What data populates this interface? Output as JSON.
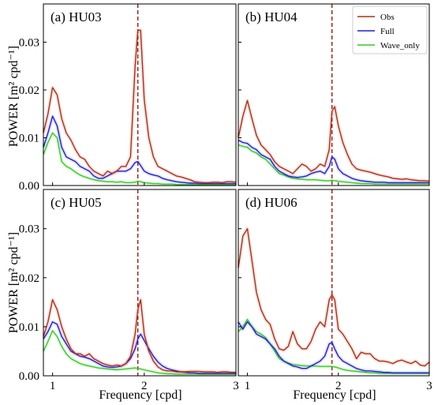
{
  "chart_data": {
    "type": "line",
    "ylabel": "POWER [m² cpd⁻¹]",
    "xlabel": "Frequency [cpd]",
    "xlim": [
      0.9,
      3.0
    ],
    "ylim": [
      0,
      0.038
    ],
    "xticks": [
      {
        "value": 1,
        "label": "1"
      },
      {
        "value": 2,
        "label": "2"
      },
      {
        "value": 3,
        "label": "3"
      }
    ],
    "yticks": [
      {
        "value": 0.0,
        "label": "0.00"
      },
      {
        "value": 0.01,
        "label": "0.01"
      },
      {
        "value": 0.02,
        "label": "0.02"
      },
      {
        "value": 0.03,
        "label": "0.03"
      }
    ],
    "reference_line_x": 1.93,
    "legend": {
      "placement": "top-right",
      "entries": [
        {
          "name": "Obs",
          "color": "#b22d12"
        },
        {
          "name": "Full",
          "color": "#1f1fd6"
        },
        {
          "name": "Wave_only",
          "color": "#33cc22"
        }
      ]
    },
    "x": [
      0.9,
      0.95,
      1.0,
      1.05,
      1.1,
      1.15,
      1.2,
      1.25,
      1.3,
      1.35,
      1.4,
      1.45,
      1.5,
      1.55,
      1.6,
      1.65,
      1.7,
      1.75,
      1.8,
      1.85,
      1.9,
      1.93,
      1.96,
      2.0,
      2.05,
      2.1,
      2.15,
      2.2,
      2.25,
      2.3,
      2.35,
      2.4,
      2.45,
      2.5,
      2.55,
      2.6,
      2.65,
      2.7,
      2.75,
      2.8,
      2.85,
      2.9,
      2.95,
      3.0
    ],
    "panels": [
      {
        "label": "(a) HU03",
        "series": [
          {
            "name": "Obs",
            "values": [
              0.011,
              0.015,
              0.0205,
              0.019,
              0.014,
              0.011,
              0.0095,
              0.0075,
              0.006,
              0.0055,
              0.004,
              0.003,
              0.0025,
              0.002,
              0.003,
              0.0025,
              0.003,
              0.004,
              0.004,
              0.006,
              0.025,
              0.0325,
              0.0325,
              0.018,
              0.01,
              0.006,
              0.004,
              0.0035,
              0.003,
              0.0025,
              0.002,
              0.0018,
              0.0015,
              0.0012,
              0.0008,
              0.0007,
              0.0006,
              0.0006,
              0.0007,
              0.0007,
              0.0006,
              0.0008,
              0.0008,
              0.0007
            ]
          },
          {
            "name": "Full",
            "values": [
              0.008,
              0.011,
              0.0145,
              0.0125,
              0.008,
              0.006,
              0.0055,
              0.005,
              0.004,
              0.0035,
              0.003,
              0.002,
              0.0015,
              0.0015,
              0.002,
              0.0025,
              0.003,
              0.003,
              0.003,
              0.0035,
              0.0048,
              0.005,
              0.0042,
              0.003,
              0.0025,
              0.0022,
              0.002,
              0.0015,
              0.0012,
              0.001,
              0.0008,
              0.0007,
              0.0006,
              0.0005,
              0.0005,
              0.0004,
              0.0004,
              0.0004,
              0.0004,
              0.0004,
              0.0004,
              0.0004,
              0.0004,
              0.0004
            ]
          },
          {
            "name": "Wave_only",
            "values": [
              0.0065,
              0.009,
              0.011,
              0.01,
              0.005,
              0.004,
              0.0035,
              0.0028,
              0.0022,
              0.0018,
              0.0015,
              0.0012,
              0.001,
              0.0009,
              0.0008,
              0.0008,
              0.0007,
              0.0008,
              0.0006,
              0.0006,
              0.0007,
              0.0009,
              0.0008,
              0.0006,
              0.0005,
              0.0004,
              0.0004,
              0.0003,
              0.0003,
              0.0003,
              0.0002,
              0.0002,
              0.0002,
              0.0002,
              0.0002,
              0.0002,
              0.0002,
              0.0002,
              0.0002,
              0.0002,
              0.0002,
              0.0002,
              0.0002,
              0.0002
            ]
          }
        ]
      },
      {
        "label": "(b) HU04",
        "series": [
          {
            "name": "Obs",
            "values": [
              0.01,
              0.0145,
              0.0178,
              0.014,
              0.0105,
              0.0085,
              0.0075,
              0.0065,
              0.005,
              0.004,
              0.0035,
              0.003,
              0.0025,
              0.0035,
              0.0045,
              0.004,
              0.003,
              0.0035,
              0.0045,
              0.004,
              0.0075,
              0.0155,
              0.0165,
              0.0125,
              0.009,
              0.0065,
              0.0045,
              0.0035,
              0.0032,
              0.003,
              0.0028,
              0.0025,
              0.0022,
              0.002,
              0.0018,
              0.0015,
              0.0014,
              0.0013,
              0.0014,
              0.0012,
              0.0011,
              0.001,
              0.001,
              0.0009
            ]
          },
          {
            "name": "Full",
            "values": [
              0.0095,
              0.009,
              0.0088,
              0.008,
              0.0075,
              0.0065,
              0.006,
              0.0055,
              0.004,
              0.003,
              0.0025,
              0.002,
              0.0018,
              0.0017,
              0.0018,
              0.002,
              0.0025,
              0.0028,
              0.003,
              0.0025,
              0.004,
              0.006,
              0.0055,
              0.0035,
              0.0025,
              0.002,
              0.0015,
              0.0012,
              0.001,
              0.0009,
              0.0008,
              0.0007,
              0.0007,
              0.0007,
              0.0006,
              0.0006,
              0.0006,
              0.0006,
              0.0006,
              0.0006,
              0.0006,
              0.0006,
              0.0006,
              0.0006
            ]
          },
          {
            "name": "Wave_only",
            "values": [
              0.0085,
              0.0082,
              0.008,
              0.0072,
              0.0068,
              0.006,
              0.0055,
              0.0045,
              0.0035,
              0.0025,
              0.0022,
              0.0018,
              0.0015,
              0.0014,
              0.0013,
              0.0012,
              0.0012,
              0.0012,
              0.0011,
              0.001,
              0.001,
              0.0011,
              0.001,
              0.0009,
              0.0008,
              0.0007,
              0.0006,
              0.0005,
              0.0004,
              0.0004,
              0.0004,
              0.0003,
              0.0003,
              0.0003,
              0.0003,
              0.0003,
              0.0003,
              0.0003,
              0.0003,
              0.0003,
              0.0003,
              0.0003,
              0.0003,
              0.0003
            ]
          }
        ]
      },
      {
        "label": "(c) HU05",
        "series": [
          {
            "name": "Obs",
            "values": [
              0.008,
              0.011,
              0.0155,
              0.0135,
              0.01,
              0.0075,
              0.0055,
              0.0045,
              0.0045,
              0.004,
              0.0045,
              0.0035,
              0.003,
              0.0025,
              0.0022,
              0.002,
              0.0022,
              0.002,
              0.0025,
              0.004,
              0.0085,
              0.0135,
              0.0155,
              0.0085,
              0.005,
              0.003,
              0.0018,
              0.0012,
              0.001,
              0.001,
              0.0008,
              0.0008,
              0.0008,
              0.0009,
              0.0009,
              0.0009,
              0.0008,
              0.0008,
              0.0008,
              0.0007,
              0.0008,
              0.0008,
              0.0007,
              0.0007
            ]
          },
          {
            "name": "Full",
            "values": [
              0.0075,
              0.009,
              0.011,
              0.0105,
              0.008,
              0.0065,
              0.005,
              0.0045,
              0.004,
              0.0038,
              0.0035,
              0.003,
              0.0025,
              0.002,
              0.0018,
              0.0017,
              0.0018,
              0.002,
              0.0025,
              0.0035,
              0.0055,
              0.0075,
              0.0085,
              0.0072,
              0.0055,
              0.004,
              0.0028,
              0.002,
              0.0015,
              0.0012,
              0.001,
              0.0008,
              0.0007,
              0.0006,
              0.0006,
              0.0005,
              0.0005,
              0.0005,
              0.0005,
              0.0005,
              0.0005,
              0.0005,
              0.0005,
              0.0005
            ]
          },
          {
            "name": "Wave_only",
            "values": [
              0.005,
              0.007,
              0.0092,
              0.008,
              0.006,
              0.0045,
              0.0035,
              0.003,
              0.0025,
              0.0022,
              0.002,
              0.0018,
              0.0016,
              0.0015,
              0.0014,
              0.0013,
              0.0012,
              0.0013,
              0.0014,
              0.0015,
              0.0016,
              0.0015,
              0.0014,
              0.0012,
              0.001,
              0.0008,
              0.0006,
              0.0005,
              0.0004,
              0.0004,
              0.0003,
              0.0003,
              0.0003,
              0.0003,
              0.0003,
              0.0003,
              0.0003,
              0.0003,
              0.0003,
              0.0003,
              0.0003,
              0.0003,
              0.0003,
              0.0003
            ]
          }
        ]
      },
      {
        "label": "(d) HU06",
        "series": [
          {
            "name": "Obs",
            "values": [
              0.022,
              0.0285,
              0.03,
              0.0235,
              0.017,
              0.0135,
              0.0115,
              0.0105,
              0.0075,
              0.0055,
              0.0052,
              0.006,
              0.009,
              0.0065,
              0.0055,
              0.0055,
              0.007,
              0.0095,
              0.011,
              0.01,
              0.0155,
              0.0165,
              0.0155,
              0.0095,
              0.0085,
              0.007,
              0.0055,
              0.0035,
              0.0048,
              0.0045,
              0.0045,
              0.0035,
              0.003,
              0.003,
              0.0028,
              0.0025,
              0.003,
              0.0032,
              0.0028,
              0.0025,
              0.003,
              0.0022,
              0.002,
              0.0028
            ]
          },
          {
            "name": "Full",
            "values": [
              0.011,
              0.0095,
              0.011,
              0.01,
              0.0085,
              0.008,
              0.0075,
              0.0065,
              0.0055,
              0.004,
              0.003,
              0.0025,
              0.002,
              0.0018,
              0.0015,
              0.0015,
              0.002,
              0.0025,
              0.003,
              0.004,
              0.0065,
              0.0068,
              0.0055,
              0.004,
              0.003,
              0.0025,
              0.002,
              0.0015,
              0.0012,
              0.001,
              0.001,
              0.0009,
              0.0008,
              0.0007,
              0.0007,
              0.0006,
              0.0006,
              0.0006,
              0.0006,
              0.0006,
              0.0006,
              0.0006,
              0.0006,
              0.0006
            ]
          },
          {
            "name": "Wave_only",
            "values": [
              0.009,
              0.01,
              0.0115,
              0.01,
              0.009,
              0.0085,
              0.0078,
              0.0065,
              0.005,
              0.0035,
              0.003,
              0.0026,
              0.0023,
              0.0022,
              0.0021,
              0.002,
              0.002,
              0.002,
              0.0019,
              0.0019,
              0.0019,
              0.0019,
              0.0018,
              0.0016,
              0.0013,
              0.0011,
              0.001,
              0.0009,
              0.0008,
              0.0007,
              0.0006,
              0.0006,
              0.0005,
              0.0005,
              0.0005,
              0.0005,
              0.0005,
              0.0005,
              0.0005,
              0.0005,
              0.0005,
              0.0005,
              0.0005,
              0.0005
            ]
          }
        ]
      }
    ]
  }
}
